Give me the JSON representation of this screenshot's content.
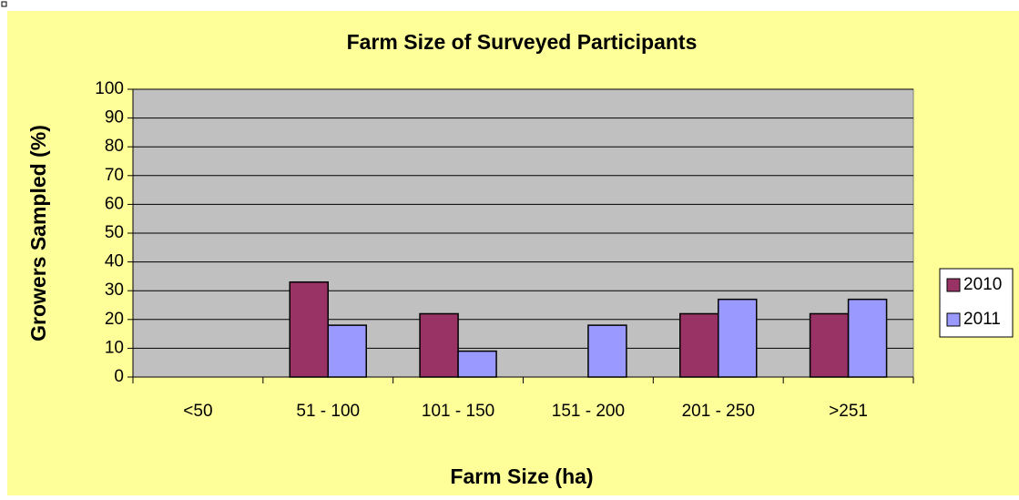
{
  "chart_data": {
    "type": "bar",
    "title": "Farm Size of Surveyed Participants",
    "x_label": "Farm Size (ha)",
    "y_label": "Growers Sampled (%)",
    "categories": [
      "<50",
      "51 - 100",
      "101 - 150",
      "151 - 200",
      "201 - 250",
      ">251"
    ],
    "series": [
      {
        "name": "2010",
        "color": "#993366",
        "values": [
          0,
          33,
          22,
          0,
          22,
          22
        ]
      },
      {
        "name": "2011",
        "color": "#9999ff",
        "values": [
          0,
          18,
          9,
          18,
          27,
          27
        ]
      }
    ],
    "ylim": [
      0,
      100
    ],
    "yticks": [
      0,
      10,
      20,
      30,
      40,
      50,
      60,
      70,
      80,
      90,
      100
    ],
    "grid": true,
    "legend": "right"
  }
}
